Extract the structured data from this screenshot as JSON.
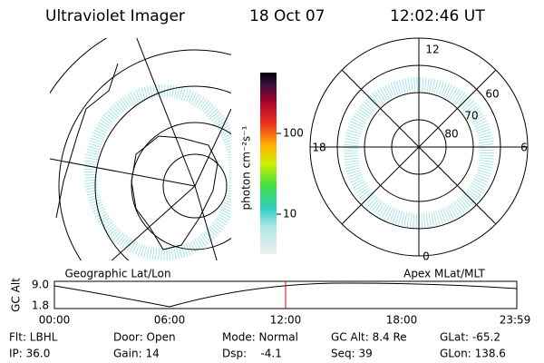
{
  "header": {
    "title": "Ultraviolet Imager",
    "date": "18 Oct 07",
    "time": "12:02:46 UT"
  },
  "left_panel": {
    "label": "Geographic Lat/Lon"
  },
  "right_panel": {
    "label": "Apex MLat/MLT",
    "mlt_labels": [
      "12",
      "18",
      "6",
      "0"
    ],
    "mlat_labels": [
      "60",
      "70",
      "80"
    ]
  },
  "colorbar": {
    "label": "photon cm⁻²s⁻¹",
    "ticks": [
      "100",
      "10"
    ]
  },
  "altitude_plot": {
    "axis_label": "GC Alt",
    "yticks": [
      "9.0",
      "1.8"
    ],
    "xticks": [
      "00:00",
      "06:00",
      "12:00",
      "18:00",
      "23:59"
    ]
  },
  "footer": {
    "rows": [
      [
        "Flt: LBHL",
        "Door: Open",
        "Mode: Normal",
        "GC Alt: 8.4 Re",
        "GLat: -65.2"
      ],
      [
        "IP: 36.0",
        "Gain: 14",
        "Dsp:    -4.1",
        "Seq: 39",
        "GLon: 138.6"
      ]
    ]
  }
}
